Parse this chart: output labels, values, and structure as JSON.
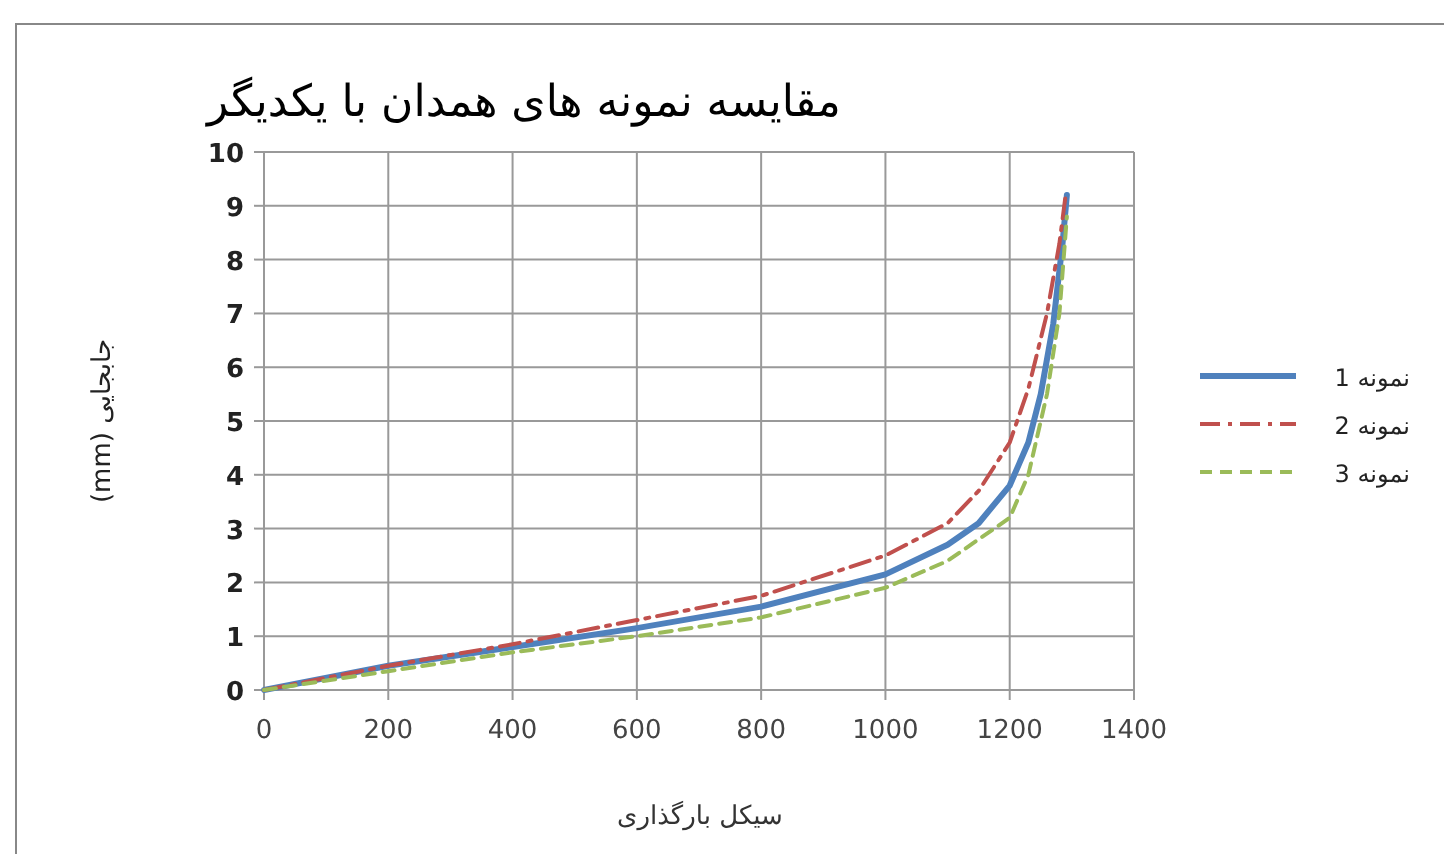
{
  "chart_data": {
    "type": "line",
    "title": "مقایسه نمونه های همدان با یکدیگر",
    "xlabel": "سیکل بارگذاری",
    "ylabel": "جابجایی (mm)",
    "xlim": [
      0,
      1400
    ],
    "xticks": [
      0,
      200,
      400,
      600,
      800,
      1000,
      1200,
      1400
    ],
    "ylim": [
      0,
      10
    ],
    "yticks": [
      0,
      1,
      2,
      3,
      4,
      5,
      6,
      7,
      8,
      9,
      10
    ],
    "grid": true,
    "legend": "right",
    "marker": "none",
    "series": [
      {
        "name": "نمونه 1",
        "color": "#4f81bd",
        "line_style": "solid",
        "x": [
          0,
          200,
          400,
          600,
          800,
          1000,
          1100,
          1150,
          1200,
          1230,
          1250,
          1270,
          1285,
          1292
        ],
        "values": [
          0,
          0.45,
          0.8,
          1.15,
          1.55,
          2.15,
          2.7,
          3.1,
          3.8,
          4.6,
          5.5,
          6.8,
          8.3,
          9.2
        ]
      },
      {
        "name": "نمونه 2",
        "color": "#c0504d",
        "line_style": "dashdot",
        "x": [
          0,
          200,
          400,
          600,
          800,
          1000,
          1100,
          1150,
          1200,
          1230,
          1260,
          1280,
          1290
        ],
        "values": [
          0,
          0.45,
          0.85,
          1.3,
          1.75,
          2.5,
          3.1,
          3.7,
          4.6,
          5.6,
          7.0,
          8.3,
          9.2
        ]
      },
      {
        "name": "نمونه 3",
        "color": "#9bbb59",
        "line_style": "dashed",
        "x": [
          0,
          200,
          400,
          600,
          800,
          1000,
          1100,
          1200,
          1230,
          1260,
          1280,
          1292
        ],
        "values": [
          0,
          0.35,
          0.7,
          1.0,
          1.35,
          1.9,
          2.4,
          3.2,
          4.0,
          5.5,
          7.0,
          8.8
        ]
      }
    ]
  }
}
